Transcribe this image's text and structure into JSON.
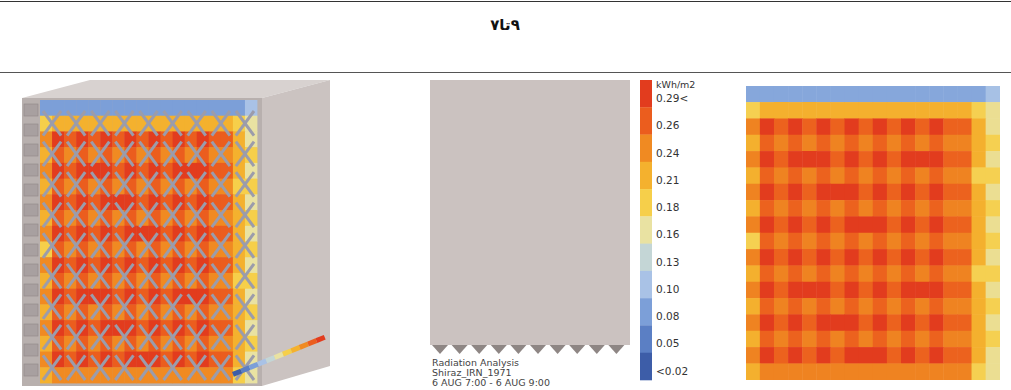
{
  "header": {
    "title": "۹تا۷"
  },
  "analysis": {
    "lines": [
      "Radiation Analysis",
      "Shiraz_IRN_1971",
      "6 AUG 7:00 - 6 AUG 9:00"
    ]
  },
  "chart_data": {
    "type": "heatmap",
    "tick_labels": false,
    "colorbar": {
      "unit": "kWh/m2",
      "range": [
        0.02,
        0.29
      ],
      "ticks": [
        {
          "value": 0.29,
          "label": "0.29<"
        },
        0.26,
        0.24,
        0.21,
        0.18,
        0.16,
        0.13,
        {
          "value": 0.1,
          "label": "0.10"
        },
        0.08,
        0.05,
        {
          "value": 0.02,
          "label": "<0.02"
        }
      ],
      "colors": [
        "#e23c1e",
        "#eb5d1e",
        "#f08a22",
        "#f4b12e",
        "#f6cf4a",
        "#e9e2a2",
        "#c4d6d6",
        "#a9c2e6",
        "#7c9fd8",
        "#5b7fc4",
        "#3d5da8"
      ]
    },
    "cells": [
      [
        0.08,
        0.08,
        0.08,
        0.08,
        0.08,
        0.08,
        0.08,
        0.08,
        0.08,
        0.08,
        0.08,
        0.08,
        0.08,
        0.08,
        0.08,
        0.08,
        0.08,
        0.1
      ],
      [
        0.18,
        0.21,
        0.21,
        0.21,
        0.21,
        0.21,
        0.21,
        0.21,
        0.21,
        0.21,
        0.21,
        0.21,
        0.21,
        0.21,
        0.21,
        0.21,
        0.18,
        0.16
      ],
      [
        0.24,
        0.29,
        0.26,
        0.29,
        0.26,
        0.29,
        0.26,
        0.29,
        0.26,
        0.29,
        0.26,
        0.29,
        0.26,
        0.29,
        0.26,
        0.26,
        0.21,
        0.16
      ],
      [
        0.21,
        0.26,
        0.24,
        0.26,
        0.24,
        0.26,
        0.24,
        0.26,
        0.24,
        0.26,
        0.24,
        0.26,
        0.24,
        0.26,
        0.24,
        0.24,
        0.21,
        0.18
      ],
      [
        0.24,
        0.29,
        0.26,
        0.29,
        0.29,
        0.29,
        0.26,
        0.29,
        0.26,
        0.29,
        0.26,
        0.29,
        0.29,
        0.29,
        0.26,
        0.26,
        0.21,
        0.16
      ],
      [
        0.21,
        0.26,
        0.24,
        0.26,
        0.24,
        0.26,
        0.24,
        0.26,
        0.24,
        0.26,
        0.24,
        0.26,
        0.24,
        0.26,
        0.24,
        0.24,
        0.18,
        0.18
      ],
      [
        0.24,
        0.29,
        0.26,
        0.29,
        0.26,
        0.29,
        0.29,
        0.29,
        0.26,
        0.29,
        0.26,
        0.29,
        0.26,
        0.29,
        0.26,
        0.26,
        0.21,
        0.16
      ],
      [
        0.21,
        0.26,
        0.24,
        0.26,
        0.24,
        0.26,
        0.24,
        0.26,
        0.24,
        0.26,
        0.24,
        0.26,
        0.24,
        0.26,
        0.24,
        0.24,
        0.21,
        0.18
      ],
      [
        0.24,
        0.29,
        0.26,
        0.29,
        0.26,
        0.29,
        0.26,
        0.29,
        0.29,
        0.29,
        0.26,
        0.29,
        0.26,
        0.29,
        0.26,
        0.26,
        0.21,
        0.16
      ],
      [
        0.18,
        0.26,
        0.24,
        0.26,
        0.24,
        0.26,
        0.24,
        0.26,
        0.24,
        0.26,
        0.24,
        0.26,
        0.24,
        0.26,
        0.24,
        0.24,
        0.21,
        0.18
      ],
      [
        0.24,
        0.29,
        0.26,
        0.29,
        0.26,
        0.29,
        0.26,
        0.29,
        0.26,
        0.29,
        0.26,
        0.29,
        0.26,
        0.29,
        0.26,
        0.26,
        0.21,
        0.16
      ],
      [
        0.21,
        0.26,
        0.24,
        0.26,
        0.24,
        0.26,
        0.24,
        0.26,
        0.24,
        0.26,
        0.24,
        0.26,
        0.24,
        0.26,
        0.24,
        0.24,
        0.18,
        0.18
      ],
      [
        0.24,
        0.29,
        0.26,
        0.29,
        0.29,
        0.29,
        0.26,
        0.29,
        0.26,
        0.29,
        0.26,
        0.29,
        0.29,
        0.29,
        0.26,
        0.26,
        0.21,
        0.16
      ],
      [
        0.21,
        0.26,
        0.24,
        0.26,
        0.24,
        0.26,
        0.24,
        0.26,
        0.24,
        0.26,
        0.24,
        0.26,
        0.24,
        0.26,
        0.24,
        0.24,
        0.21,
        0.18
      ],
      [
        0.24,
        0.29,
        0.26,
        0.29,
        0.26,
        0.29,
        0.29,
        0.29,
        0.26,
        0.29,
        0.26,
        0.29,
        0.26,
        0.29,
        0.26,
        0.26,
        0.21,
        0.16
      ],
      [
        0.21,
        0.26,
        0.24,
        0.26,
        0.24,
        0.26,
        0.24,
        0.26,
        0.24,
        0.26,
        0.24,
        0.26,
        0.24,
        0.26,
        0.24,
        0.24,
        0.21,
        0.18
      ],
      [
        0.24,
        0.29,
        0.26,
        0.29,
        0.26,
        0.29,
        0.26,
        0.29,
        0.29,
        0.29,
        0.26,
        0.29,
        0.26,
        0.29,
        0.26,
        0.26,
        0.21,
        0.16
      ],
      [
        0.21,
        0.24,
        0.24,
        0.24,
        0.24,
        0.24,
        0.24,
        0.24,
        0.24,
        0.24,
        0.24,
        0.24,
        0.24,
        0.24,
        0.24,
        0.24,
        0.18,
        0.16
      ]
    ]
  }
}
